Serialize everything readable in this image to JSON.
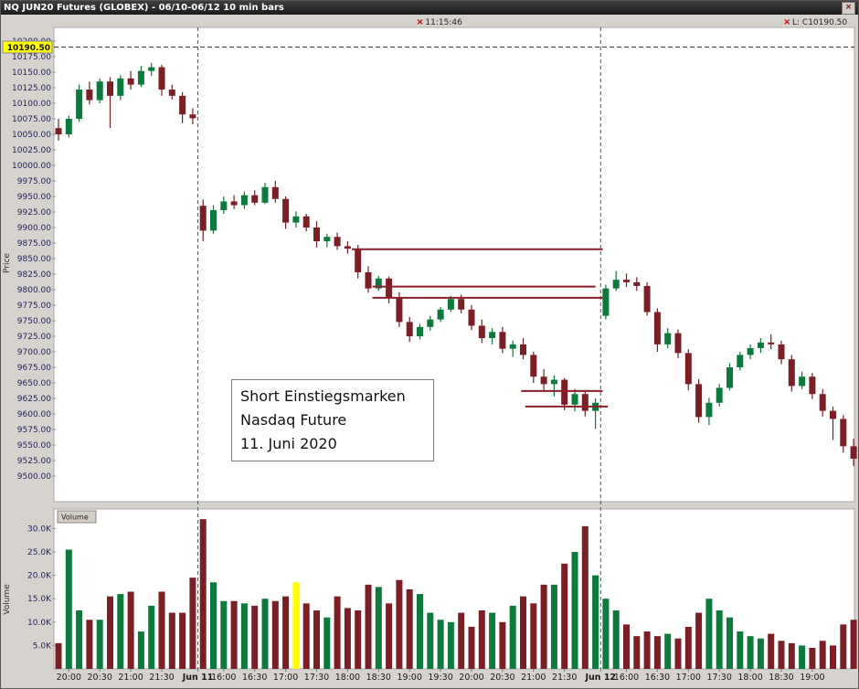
{
  "window": {
    "title": "NQ JUN20 Futures (GLOBEX) - 06/10-06/12 10 min bars",
    "close_label": "×"
  },
  "axes": {
    "price_label": "Price",
    "volume_label": "Volume"
  },
  "annotations": {
    "volume_chip": "Volume",
    "time_marker": "11:15:46",
    "last_price_marker": "L: C10190.50",
    "textbox": {
      "line1": "Short Einstiegsmarken",
      "line2": "Nasdaq Future",
      "line3": "11. Juni 2020"
    }
  },
  "chart_data": {
    "type": "candlestick",
    "symbol": "NQ JUN20 Futures (GLOBEX)",
    "interval": "10 min bars",
    "title": "NQ JUN20 Futures (GLOBEX) - 06/10-06/12 10 min bars",
    "ylabel": "Price",
    "volume_ylabel": "Volume",
    "price_axis": {
      "min": 9500,
      "max": 10200,
      "step": 25
    },
    "volume_axis": {
      "ticks_k": [
        5,
        10,
        15,
        20,
        25,
        30
      ],
      "unit": "K"
    },
    "x_ticks": [
      {
        "i": 1,
        "label": "20:00"
      },
      {
        "i": 4,
        "label": "20:30"
      },
      {
        "i": 7,
        "label": "21:00"
      },
      {
        "i": 10,
        "label": "21:30"
      },
      {
        "i": 13.5,
        "label": "Jun 11",
        "bold": true
      },
      {
        "i": 16,
        "label": "16:00"
      },
      {
        "i": 19,
        "label": "16:30"
      },
      {
        "i": 22,
        "label": "17:00"
      },
      {
        "i": 25,
        "label": "17:30"
      },
      {
        "i": 28,
        "label": "18:00"
      },
      {
        "i": 31,
        "label": "18:30"
      },
      {
        "i": 34,
        "label": "19:00"
      },
      {
        "i": 37,
        "label": "19:30"
      },
      {
        "i": 40,
        "label": "20:00"
      },
      {
        "i": 43,
        "label": "20:30"
      },
      {
        "i": 46,
        "label": "21:00"
      },
      {
        "i": 49,
        "label": "21:30"
      },
      {
        "i": 52.5,
        "label": "Jun 12",
        "bold": true
      },
      {
        "i": 55,
        "label": "16:00"
      },
      {
        "i": 58,
        "label": "16:30"
      },
      {
        "i": 61,
        "label": "17:00"
      },
      {
        "i": 64,
        "label": "17:30"
      },
      {
        "i": 67,
        "label": "18:00"
      },
      {
        "i": 70,
        "label": "18:30"
      },
      {
        "i": 73,
        "label": "19:00"
      }
    ],
    "session_lines": [
      13.5,
      52.5
    ],
    "highlight_line": {
      "price": 10190.5,
      "label": "10190.50"
    },
    "time_marker_bar": 35.7,
    "entry_lines": [
      {
        "price": 9865,
        "from": 28.4,
        "to": 52.7
      },
      {
        "price": 9805,
        "from": 30.4,
        "to": 52.0
      },
      {
        "price": 9787,
        "from": 30.4,
        "to": 52.7
      },
      {
        "price": 9637,
        "from": 44.8,
        "to": 52.7
      },
      {
        "price": 9612,
        "from": 45.2,
        "to": 53.2
      }
    ],
    "highlight_volume_index": 23,
    "bars": [
      [
        10060,
        10075,
        10040,
        10050,
        5.5
      ],
      [
        10050,
        10080,
        10045,
        10075,
        25.5
      ],
      [
        10075,
        10130,
        10070,
        10122,
        12.5
      ],
      [
        10122,
        10135,
        10098,
        10105,
        10.5
      ],
      [
        10105,
        10140,
        10100,
        10135,
        10.5
      ],
      [
        10135,
        10142,
        10060,
        10112,
        15.5
      ],
      [
        10112,
        10145,
        10105,
        10140,
        16.0
      ],
      [
        10140,
        10152,
        10122,
        10130,
        16.5
      ],
      [
        10130,
        10160,
        10126,
        10152,
        8.0
      ],
      [
        10152,
        10165,
        10144,
        10158,
        13.5
      ],
      [
        10158,
        10162,
        10112,
        10122,
        16.5
      ],
      [
        10122,
        10130,
        10106,
        10112,
        12.0
      ],
      [
        10112,
        10118,
        10068,
        10082,
        12.0
      ],
      [
        10082,
        10092,
        10066,
        10076,
        19.5
      ],
      [
        9935,
        9945,
        9878,
        9895,
        32.0
      ],
      [
        9895,
        9936,
        9890,
        9928,
        18.5
      ],
      [
        9928,
        9950,
        9922,
        9942,
        14.5
      ],
      [
        9942,
        9952,
        9930,
        9936,
        14.5
      ],
      [
        9936,
        9958,
        9930,
        9952,
        14.0
      ],
      [
        9952,
        9960,
        9936,
        9940,
        13.5
      ],
      [
        9940,
        9972,
        9938,
        9965,
        15.0
      ],
      [
        9965,
        9975,
        9940,
        9946,
        14.5
      ],
      [
        9946,
        9950,
        9898,
        9908,
        15.5
      ],
      [
        9908,
        9926,
        9900,
        9918,
        18.5
      ],
      [
        9918,
        9922,
        9894,
        9900,
        14.0
      ],
      [
        9900,
        9910,
        9868,
        9878,
        12.5
      ],
      [
        9878,
        9890,
        9868,
        9885,
        11.0
      ],
      [
        9885,
        9892,
        9864,
        9870,
        15.5
      ],
      [
        9870,
        9878,
        9858,
        9866,
        13.0
      ],
      [
        9866,
        9872,
        9818,
        9828,
        12.5
      ],
      [
        9828,
        9838,
        9795,
        9802,
        18.0
      ],
      [
        9802,
        9822,
        9798,
        9818,
        17.5
      ],
      [
        9818,
        9821,
        9778,
        9788,
        14.0
      ],
      [
        9788,
        9796,
        9740,
        9748,
        19.0
      ],
      [
        9748,
        9756,
        9716,
        9725,
        17.0
      ],
      [
        9725,
        9745,
        9720,
        9740,
        16.0
      ],
      [
        9740,
        9758,
        9734,
        9752,
        12.0
      ],
      [
        9752,
        9772,
        9748,
        9768,
        10.5
      ],
      [
        9768,
        9790,
        9764,
        9785,
        10.0
      ],
      [
        9785,
        9792,
        9762,
        9768,
        12.0
      ],
      [
        9768,
        9775,
        9735,
        9742,
        9.0
      ],
      [
        9742,
        9752,
        9714,
        9722,
        12.5
      ],
      [
        9722,
        9738,
        9712,
        9732,
        12.0
      ],
      [
        9732,
        9740,
        9698,
        9705,
        10.0
      ],
      [
        9705,
        9718,
        9692,
        9712,
        13.5
      ],
      [
        9712,
        9722,
        9688,
        9695,
        15.5
      ],
      [
        9695,
        9700,
        9650,
        9660,
        14.0
      ],
      [
        9660,
        9672,
        9638,
        9648,
        18.0
      ],
      [
        9648,
        9662,
        9628,
        9655,
        18.0
      ],
      [
        9655,
        9658,
        9606,
        9615,
        22.5
      ],
      [
        9615,
        9640,
        9604,
        9632,
        25.0
      ],
      [
        9632,
        9638,
        9596,
        9605,
        30.5
      ],
      [
        9605,
        9625,
        9576,
        9618,
        20.0
      ],
      [
        9758,
        9808,
        9752,
        9802,
        15.0
      ],
      [
        9802,
        9830,
        9798,
        9816,
        12.5
      ],
      [
        9816,
        9826,
        9804,
        9812,
        9.5
      ],
      [
        9812,
        9820,
        9798,
        9806,
        7.0
      ],
      [
        9806,
        9812,
        9758,
        9764,
        8.0
      ],
      [
        9764,
        9770,
        9700,
        9712,
        7.0
      ],
      [
        9712,
        9738,
        9706,
        9730,
        7.5
      ],
      [
        9730,
        9736,
        9690,
        9698,
        6.5
      ],
      [
        9698,
        9704,
        9638,
        9648,
        9.0
      ],
      [
        9648,
        9656,
        9586,
        9595,
        12.0
      ],
      [
        9595,
        9626,
        9582,
        9618,
        15.0
      ],
      [
        9618,
        9648,
        9612,
        9642,
        12.5
      ],
      [
        9642,
        9682,
        9638,
        9675,
        11.0
      ],
      [
        9675,
        9700,
        9670,
        9695,
        8.0
      ],
      [
        9695,
        9712,
        9688,
        9706,
        7.0
      ],
      [
        9706,
        9722,
        9698,
        9715,
        6.5
      ],
      [
        9715,
        9728,
        9704,
        9712,
        7.5
      ],
      [
        9712,
        9718,
        9680,
        9688,
        6.0
      ],
      [
        9688,
        9695,
        9636,
        9645,
        5.5
      ],
      [
        9645,
        9668,
        9640,
        9660,
        5.0
      ],
      [
        9660,
        9666,
        9624,
        9632,
        4.5
      ],
      [
        9632,
        9640,
        9596,
        9605,
        6.0
      ],
      [
        9605,
        9612,
        9558,
        9592,
        5.0
      ],
      [
        9592,
        9598,
        9538,
        9548,
        9.5
      ],
      [
        9548,
        9560,
        9516,
        9528,
        10.5
      ]
    ],
    "colors": {
      "up": "#0c7a3c",
      "down": "#7b1e26",
      "entry_line": "#8b1e28",
      "volume_highlight": "#ffff00",
      "axis_text": "#1f1f5e",
      "price_tag_bg": "#ffff00"
    }
  }
}
